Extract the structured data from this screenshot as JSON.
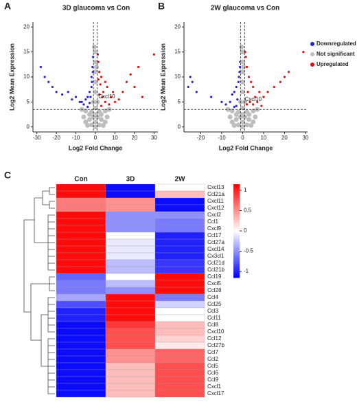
{
  "chart_data": [
    {
      "type": "scatter",
      "panel_label": "A",
      "title": "3D glaucoma vs Con",
      "x_label": "Log2 Fold Change",
      "y_label": "Log2 Mean Expression",
      "xlim": [
        -32,
        32
      ],
      "xticks": [
        -30,
        -20,
        -10,
        0,
        10,
        20,
        30
      ],
      "ylim": [
        -1,
        21
      ],
      "yticks": [
        0,
        5,
        10,
        15,
        20
      ],
      "hline": 3.5,
      "vlines": [
        -1,
        1
      ],
      "annotation": {
        "text": "Cxcl10",
        "x": 1.5,
        "y": 6
      },
      "series": [
        {
          "color": "#bdbdbd",
          "x": [
            0,
            -4,
            4,
            -6,
            6,
            -5,
            5,
            -3,
            3,
            0,
            0,
            -2,
            2,
            -5,
            5,
            0,
            -1,
            1,
            0,
            0,
            0,
            0,
            0,
            -0.5,
            0.5,
            -7,
            7,
            -2,
            2,
            -1,
            1,
            -3,
            3
          ],
          "y": [
            0,
            0.3,
            0.3,
            2,
            2,
            1,
            1,
            1.5,
            1.5,
            1,
            2.5,
            3,
            3,
            3.2,
            3.2,
            3.8,
            5,
            5,
            7,
            9,
            11,
            13,
            15,
            16,
            12,
            3.5,
            3.5,
            0.4,
            0.4,
            2,
            2,
            2.5,
            2.5
          ]
        },
        {
          "color": "#2222dd",
          "x": [
            -28,
            -26,
            -22,
            -20,
            -24,
            -14,
            -10,
            -8,
            -6,
            -5,
            -4,
            -3,
            -2,
            -2,
            -1.5,
            -1.2,
            -2.5,
            -3,
            -4,
            -7,
            -12,
            -17,
            -1.8,
            -1.3
          ],
          "y": [
            12,
            10,
            8,
            7,
            9,
            7,
            6,
            5,
            4.5,
            5.5,
            6,
            7,
            8,
            10,
            12,
            14,
            6,
            4.8,
            4,
            5,
            5.5,
            6.5,
            9,
            11
          ]
        },
        {
          "color": "#dd1111",
          "x": [
            30,
            22,
            18,
            16,
            14,
            12,
            10,
            8,
            6,
            5,
            4,
            3,
            2,
            1.5,
            1.2,
            2.5,
            3.5,
            5,
            7,
            9,
            20,
            24,
            3,
            2,
            1.5
          ],
          "y": [
            14.5,
            12,
            10.5,
            9,
            7,
            5.5,
            5,
            6,
            8,
            9,
            7,
            10,
            11,
            13,
            14.5,
            8.5,
            6,
            5,
            4.5,
            7,
            8,
            6,
            4.2,
            6.5,
            9.5
          ]
        }
      ]
    },
    {
      "type": "scatter",
      "panel_label": "B",
      "title": "2W glaucoma vs Con",
      "x_label": "Log2 Fold Change",
      "y_label": "Log2 Mean Expression",
      "xlim": [
        -28,
        31
      ],
      "xticks": [
        -20,
        -10,
        0,
        10,
        20,
        30
      ],
      "ylim": [
        -1,
        21
      ],
      "yticks": [
        0,
        5,
        10,
        15,
        20
      ],
      "hline": 3.5,
      "vlines": [
        -1,
        1
      ],
      "annotation": {
        "text": "Cxcl10",
        "x": 1,
        "y": 5.5
      },
      "legend": "right",
      "series": [
        {
          "name": "Downregulated",
          "color": "#2222dd",
          "x": [
            -26,
            -25,
            -24,
            -22,
            -15,
            -10,
            -8,
            -6,
            -5,
            -4,
            -3,
            -2,
            -1.5,
            -1.2,
            -2.5,
            -3,
            -4,
            -1.8,
            -1.3
          ],
          "y": [
            8,
            10,
            9,
            7,
            6,
            5,
            4.5,
            5,
            6.5,
            7,
            8,
            9,
            11,
            13,
            5.5,
            4.2,
            4,
            10,
            12
          ]
        },
        {
          "name": "Not significant",
          "color": "#bdbdbd",
          "x": [
            0,
            -4,
            4,
            -6,
            6,
            -5,
            5,
            -3,
            3,
            0,
            0,
            -2,
            2,
            -5,
            5,
            0,
            -1,
            1,
            0,
            0,
            0,
            0,
            0,
            -0.5,
            0.5,
            -7,
            7,
            -2,
            2,
            -1,
            1,
            -3,
            3
          ],
          "y": [
            0,
            0.3,
            0.3,
            2,
            2,
            1,
            1,
            1.5,
            1.5,
            1,
            2.5,
            3,
            3,
            3.2,
            3.2,
            3.8,
            5,
            5,
            7,
            9,
            11,
            13,
            15,
            16,
            12,
            3.5,
            3.5,
            0.4,
            0.4,
            2,
            2,
            2.5,
            2.5
          ]
        },
        {
          "name": "Upregulated",
          "color": "#dd1111",
          "x": [
            29,
            22,
            20,
            18,
            15,
            12,
            10,
            8,
            6,
            5,
            4,
            3,
            2,
            1.5,
            1.2,
            2.5,
            3.5,
            5,
            7,
            9,
            2
          ],
          "y": [
            15,
            11,
            10,
            9,
            8,
            7,
            6,
            7,
            6,
            8,
            9,
            10,
            12,
            14,
            15,
            7,
            5,
            4.5,
            5,
            4.2,
            4.5
          ]
        }
      ]
    },
    {
      "type": "heatmap",
      "panel_label": "C",
      "columns": [
        "Con",
        "3D",
        "2W"
      ],
      "rows": [
        "Cxcl13",
        "Ccl21a",
        "Cxcl11",
        "Cxcl12",
        "Cxcl2",
        "Ccl1",
        "Cxcl9",
        "Ccl17",
        "Ccl27a",
        "Cxcl14",
        "Cx3cl1",
        "Ccl21d",
        "Ccl21b",
        "Ccl19",
        "Cxcl5",
        "Ccl28",
        "Ccl4",
        "Ccl25",
        "Ccl3",
        "Ccl11",
        "Ccl8",
        "Cxcl10",
        "Ccl12",
        "Ccl27b",
        "Ccl7",
        "Ccl2",
        "Ccl5",
        "Ccl6",
        "Ccl9",
        "Cxcl1",
        "Cxcl17"
      ],
      "values": [
        [
          1.1,
          -1.1,
          0
        ],
        [
          1.1,
          -1.1,
          0.3
        ],
        [
          0.6,
          0.5,
          -1.1
        ],
        [
          0.6,
          0.5,
          -1.1
        ],
        [
          1.1,
          -0.5,
          -0.5
        ],
        [
          1.1,
          -0.5,
          -0.6
        ],
        [
          1.1,
          -0.5,
          -0.6
        ],
        [
          1.1,
          0,
          -1
        ],
        [
          1.1,
          -0.1,
          -1
        ],
        [
          1.1,
          -0.1,
          -1
        ],
        [
          1.1,
          -0.1,
          -1
        ],
        [
          1.1,
          -0.3,
          -0.9
        ],
        [
          1.1,
          -0.3,
          -0.9
        ],
        [
          -0.7,
          0,
          1.1
        ],
        [
          -0.6,
          -0.3,
          1.1
        ],
        [
          -0.6,
          -0.5,
          1.1
        ],
        [
          -0.4,
          1.1,
          -0.6
        ],
        [
          -0.8,
          1.1,
          -0.2
        ],
        [
          -1,
          1.1,
          0
        ],
        [
          -1,
          1.1,
          0
        ],
        [
          -1.1,
          0.9,
          0.3
        ],
        [
          -1.1,
          0.8,
          0.3
        ],
        [
          -1.1,
          0.8,
          0.2
        ],
        [
          -1.1,
          0.8,
          0.1
        ],
        [
          -1.1,
          0.5,
          0.7
        ],
        [
          -1.1,
          0.5,
          0.7
        ],
        [
          -1.1,
          0.3,
          0.8
        ],
        [
          -1.1,
          0.3,
          0.8
        ],
        [
          -1.1,
          0.3,
          0.8
        ],
        [
          -1.1,
          0.3,
          0.8
        ],
        [
          -1.1,
          0.3,
          0.8
        ]
      ],
      "zlim": [
        -1.15,
        1.15
      ],
      "zticks": [
        1,
        0.5,
        0,
        -0.5,
        -1
      ]
    }
  ]
}
